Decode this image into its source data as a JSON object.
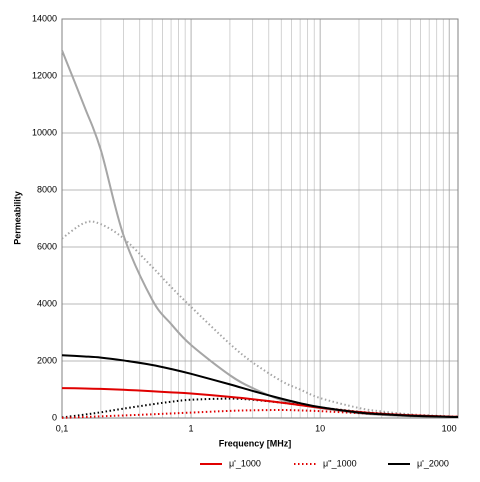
{
  "chart_data": {
    "type": "line",
    "x_label": "Frequency [MHz]",
    "y_label": "Permeability",
    "x": [
      0.1,
      0.15,
      0.2,
      0.3,
      0.5,
      0.7,
      1,
      2,
      3,
      5,
      7,
      10,
      20,
      30,
      50,
      100,
      117
    ],
    "series": [
      {
        "color": "#a6a6a6",
        "dash": "solid",
        "values": [
          12900,
          10900,
          9400,
          6400,
          4150,
          3300,
          2560,
          1500,
          1050,
          630,
          470,
          350,
          170,
          110,
          65,
          30,
          25
        ]
      },
      {
        "color": "#a6a6a6",
        "dash": "dotted",
        "values": [
          6300,
          6850,
          6800,
          6300,
          5300,
          4600,
          3900,
          2600,
          1950,
          1300,
          1000,
          700,
          350,
          230,
          130,
          60,
          50
        ]
      },
      {
        "color": "#000000",
        "dash": "dotted",
        "values": [
          20,
          120,
          200,
          330,
          480,
          570,
          640,
          680,
          640,
          540,
          460,
          370,
          220,
          160,
          100,
          50,
          45
        ]
      },
      {
        "name": "μ'_1000",
        "color": "#e00000",
        "dash": "solid",
        "values": [
          1050,
          1035,
          1020,
          990,
          940,
          900,
          860,
          740,
          660,
          540,
          450,
          360,
          210,
          150,
          95,
          50,
          45
        ]
      },
      {
        "name": "μ''_1000",
        "color": "#e00000",
        "dash": "dotted",
        "values": [
          5,
          35,
          60,
          90,
          130,
          160,
          190,
          250,
          270,
          280,
          265,
          240,
          170,
          130,
          85,
          45,
          40
        ]
      },
      {
        "name": "μ'_2000",
        "color": "#000000",
        "dash": "solid",
        "values": [
          2200,
          2160,
          2120,
          2020,
          1860,
          1720,
          1550,
          1180,
          950,
          680,
          520,
          380,
          190,
          130,
          80,
          40,
          35
        ]
      }
    ],
    "xlog": true,
    "xlim": [
      0.1,
      117
    ],
    "xticks": [
      {
        "value": 0.1,
        "label": "0,1"
      },
      1,
      10,
      100
    ],
    "xminorticks": [
      0.2,
      0.3,
      0.4,
      0.5,
      0.6,
      0.7,
      0.8,
      0.9,
      2,
      3,
      4,
      5,
      6,
      7,
      8,
      9,
      20,
      30,
      40,
      50,
      60,
      70,
      80,
      90
    ],
    "ylim": [
      0,
      14000
    ],
    "yticks": [
      0,
      2000,
      4000,
      6000,
      8000,
      10000,
      12000,
      14000
    ],
    "grid": true,
    "legend": "bottom"
  }
}
